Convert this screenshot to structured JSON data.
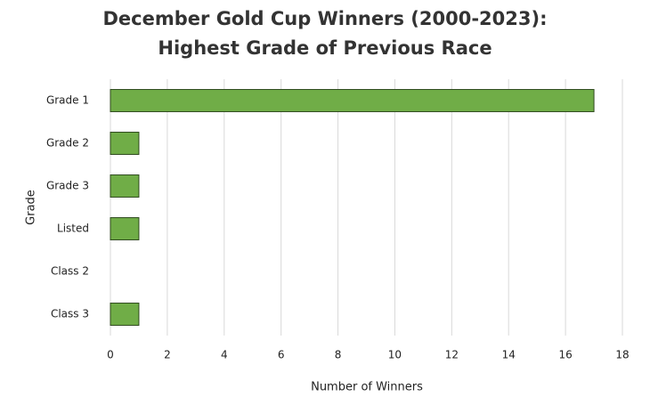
{
  "chart_data": {
    "type": "bar",
    "orientation": "horizontal",
    "title": [
      "December Gold Cup Winners (2000-2023):",
      "Highest Grade of Previous Race"
    ],
    "x_label": "Number of Winners",
    "y_label": "Grade",
    "categories": [
      "Grade 1",
      "Grade 2",
      "Grade 3",
      "Listed",
      "Class 2",
      "Class 3"
    ],
    "values": [
      17,
      1,
      1,
      1,
      0,
      1
    ],
    "color": "#70ad47",
    "xlim": [
      0,
      18
    ],
    "xticks": [
      0,
      2,
      4,
      6,
      8,
      10,
      12,
      14,
      16,
      18
    ],
    "grid": true
  }
}
